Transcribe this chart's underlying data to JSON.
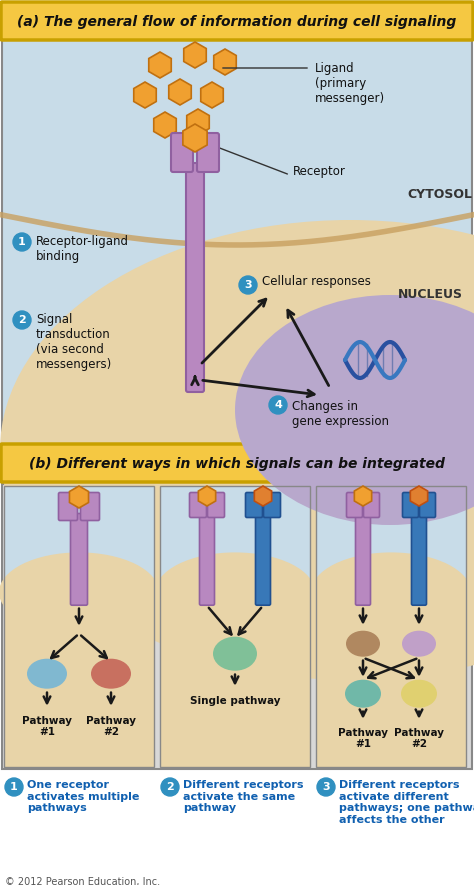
{
  "title_a": "(a) The general flow of information during cell signaling",
  "title_b": "(b) Different ways in which signals can be integrated",
  "title_bg": "#f5c842",
  "title_border": "#c8a000",
  "panel_a_bg_top": "#c8dce8",
  "panel_a_bg_bottom": "#e8d4a8",
  "panel_nucleus_bg": "#b8a8cc",
  "panel_b_bg_top": "#c8dce8",
  "panel_b_box_bg": "#e8d4a8",
  "cytosol_text": "CYTOSOL",
  "nucleus_text": "NUCLEUS",
  "ligand_color": "#f0a030",
  "ligand_border": "#c07010",
  "receptor_purple": "#b888c0",
  "receptor_purple_dark": "#9060a0",
  "receptor_blue": "#3878b8",
  "receptor_blue_dark": "#205090",
  "receptor_orange": "#e08030",
  "receptor_orange_dark": "#c05010",
  "arrow_color": "#1a1a1a",
  "label1": "Receptor-ligand\nbinding",
  "label2": "Signal\ntransduction\n(via second\nmessengers)",
  "label3": "Cellular responses",
  "label4": "Changes in\ngene expression",
  "circle1_color": "#3090c0",
  "circle_text_color": "#ffffff",
  "dna_color1": "#2850a0",
  "dna_color2": "#3878c0",
  "blob_blue": "#80b8d0",
  "blob_red": "#c87060",
  "blob_green": "#80c098",
  "blob_brown": "#b08860",
  "blob_purple_light": "#c0a0c8",
  "blob_yellow": "#e0d070",
  "blob_teal": "#70b8a8",
  "bottom_label1": "One receptor\nactivates multiple\npathways",
  "bottom_label2": "Different receptors\nactivate the same\npathway",
  "bottom_label3": "Different receptors\nactivate different\npathways; one pathway\naffects the other",
  "bottom_text_color": "#1060b0",
  "copyright": "© 2012 Pearson Education, Inc.",
  "fig_width": 4.74,
  "fig_height": 8.85,
  "fig_dpi": 100
}
